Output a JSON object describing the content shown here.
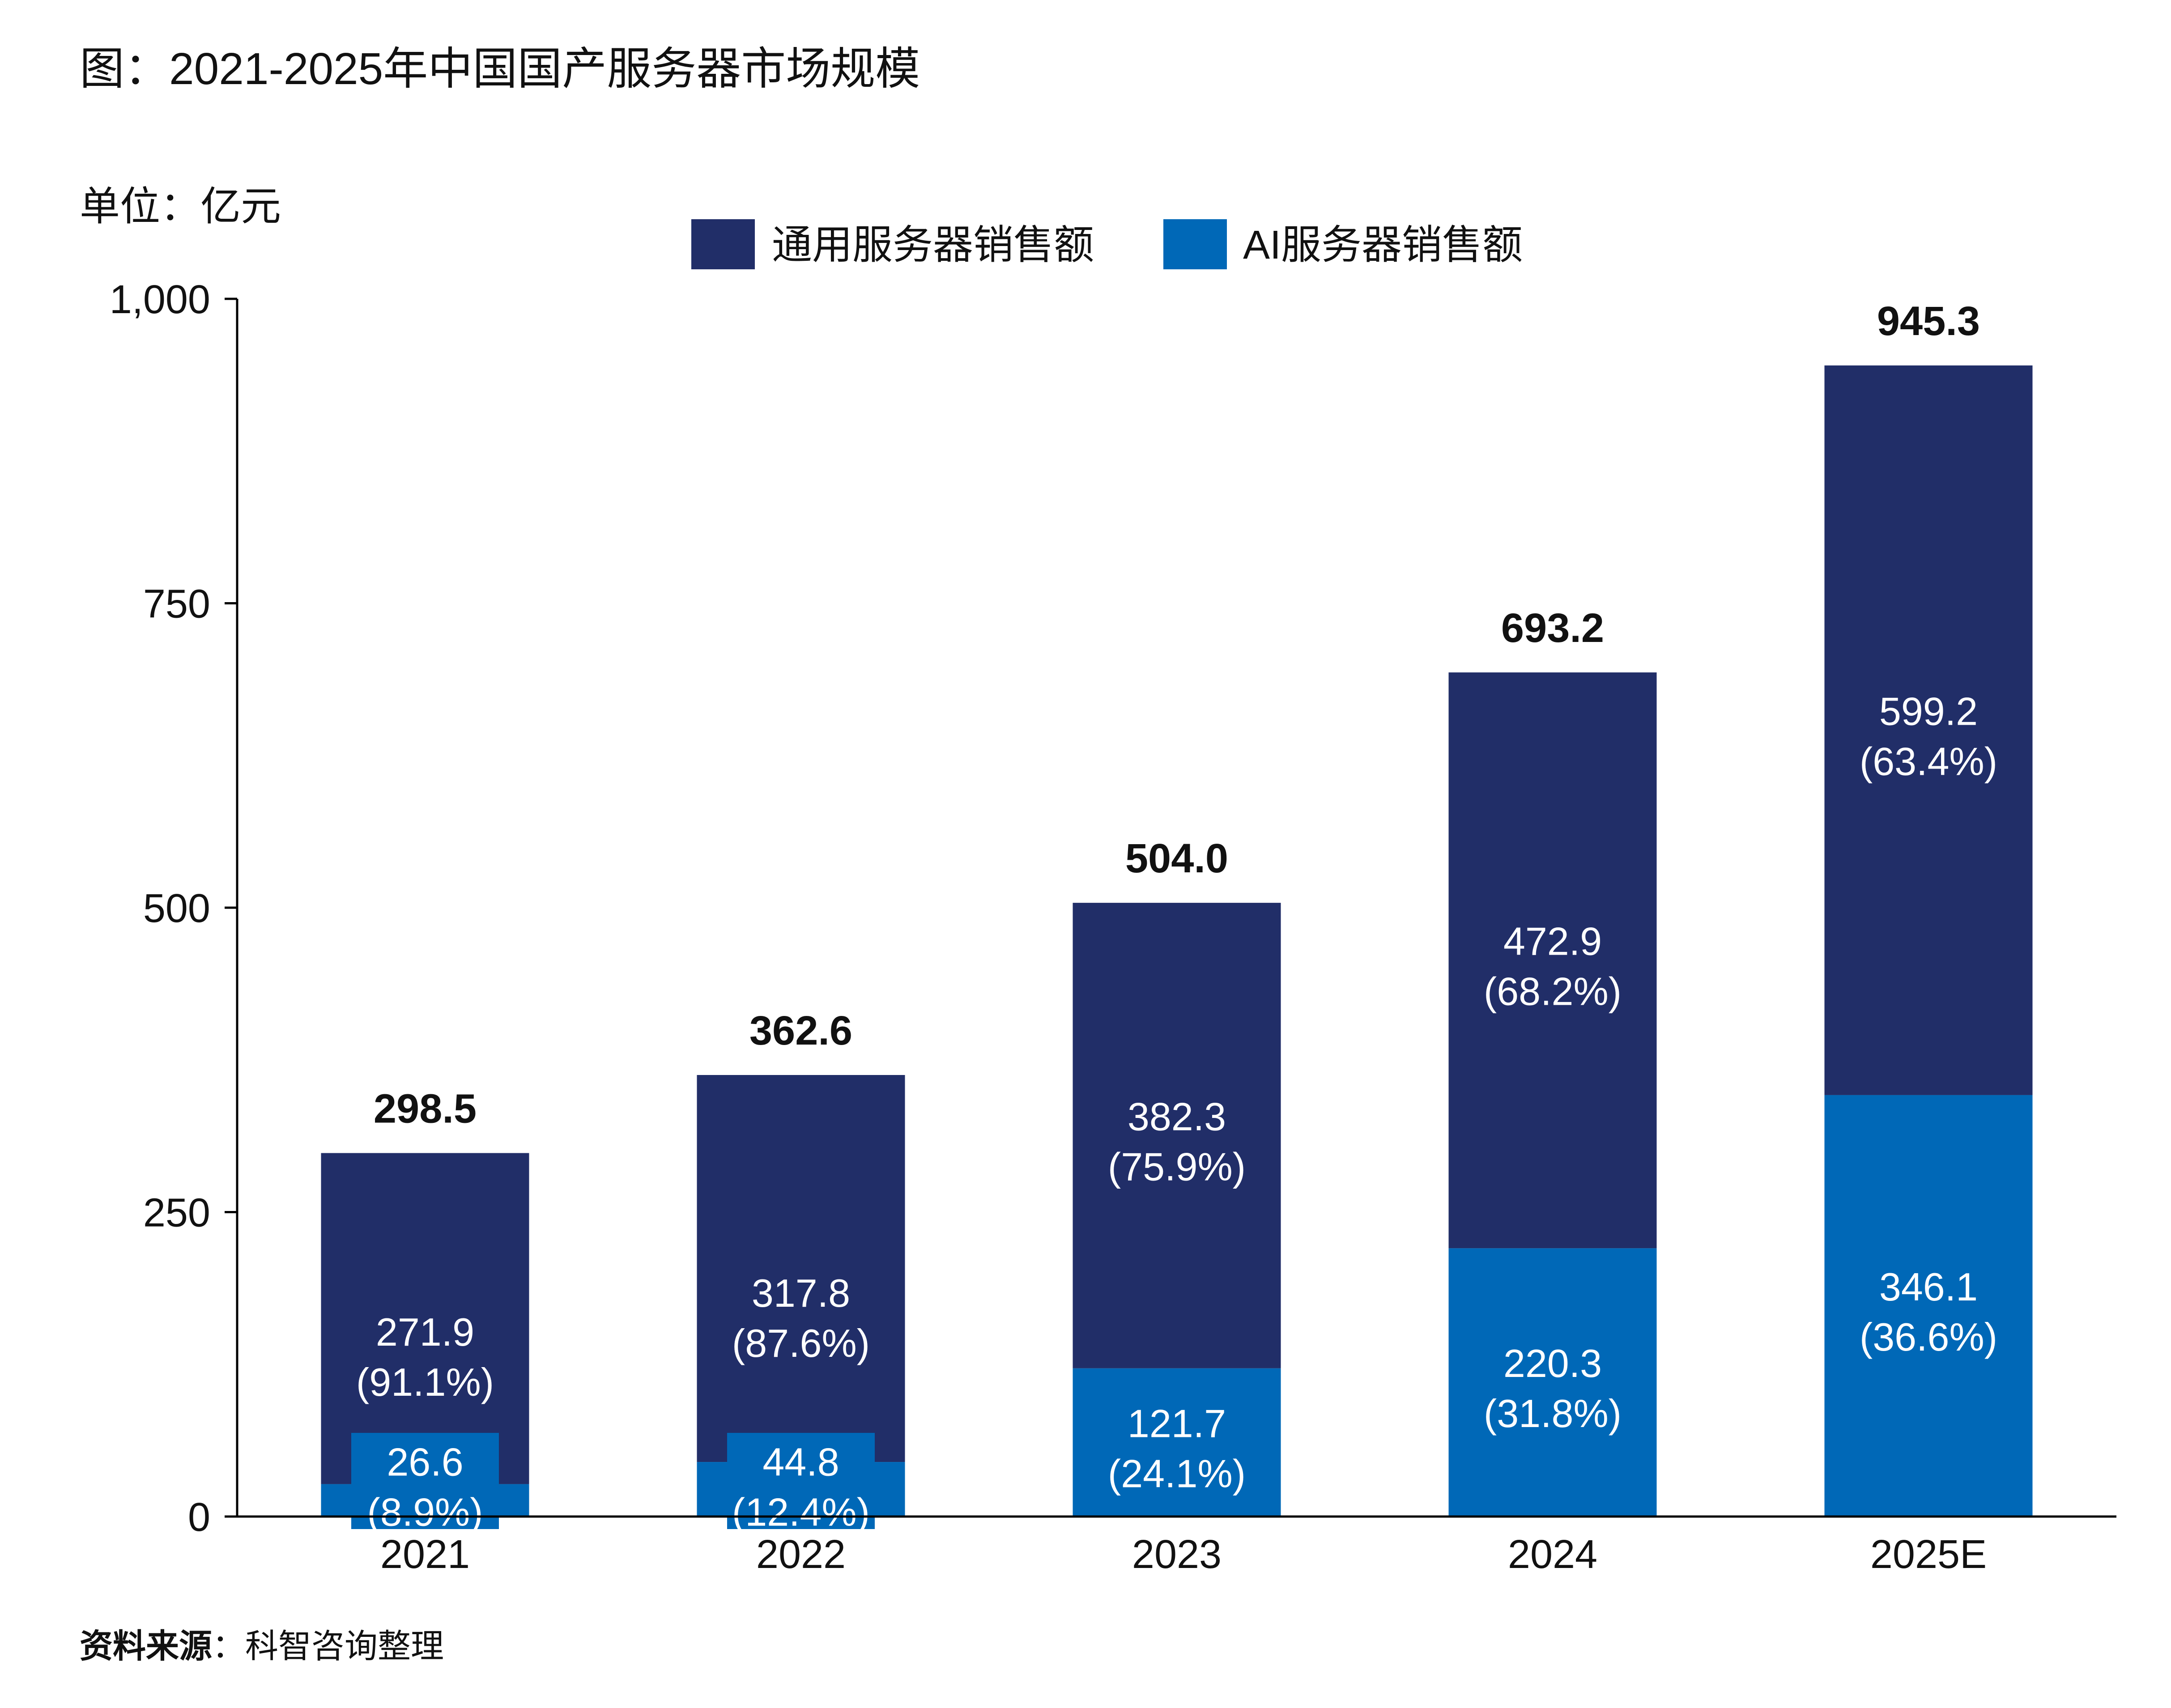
{
  "header": {
    "title": "图：2021-2025年中国国产服务器市场规模",
    "unit": "单位：亿元"
  },
  "footer": {
    "source_label": "资料来源",
    "source_text": "：科智咨询整理"
  },
  "colors": {
    "general": "#212E68",
    "ai": "#0068B7",
    "axis": "#000000",
    "text": "#111111",
    "inner_text": "#FFFFFF"
  },
  "chart_data": {
    "type": "bar",
    "stacked": true,
    "title": "图：2021-2025年中国国产服务器市场规模",
    "ylabel": "单位：亿元",
    "ylim": [
      0,
      1000
    ],
    "yticks": [
      0,
      250,
      500,
      750,
      1000
    ],
    "ytick_labels": [
      "0",
      "250",
      "500",
      "750",
      "1,000"
    ],
    "grid": false,
    "legend_position": "top-center",
    "categories": [
      "2021",
      "2022",
      "2023",
      "2024",
      "2025E"
    ],
    "series": [
      {
        "name": "AI服务器销售额",
        "color": "#0068B7",
        "values": [
          26.6,
          44.8,
          121.7,
          220.3,
          346.1
        ],
        "labels": [
          "26.6",
          "44.8",
          "121.7",
          "220.3",
          "346.1"
        ],
        "shares": [
          "(8.9%)",
          "(12.4%)",
          "(24.1%)",
          "(31.8%)",
          "(36.6%)"
        ]
      },
      {
        "name": "通用服务器销售额",
        "color": "#212E68",
        "values": [
          271.9,
          317.8,
          382.3,
          472.9,
          599.2
        ],
        "labels": [
          "271.9",
          "317.8",
          "382.3",
          "472.9",
          "599.2"
        ],
        "shares": [
          "(91.1%)",
          "(87.6%)",
          "(75.9%)",
          "(68.2%)",
          "(63.4%)"
        ]
      }
    ],
    "legend_order": [
      "通用服务器销售额",
      "AI服务器销售额"
    ],
    "totals": [
      298.5,
      362.6,
      504.0,
      693.2,
      945.3
    ],
    "total_labels": [
      "298.5",
      "362.6",
      "504.0",
      "693.2",
      "945.3"
    ]
  }
}
